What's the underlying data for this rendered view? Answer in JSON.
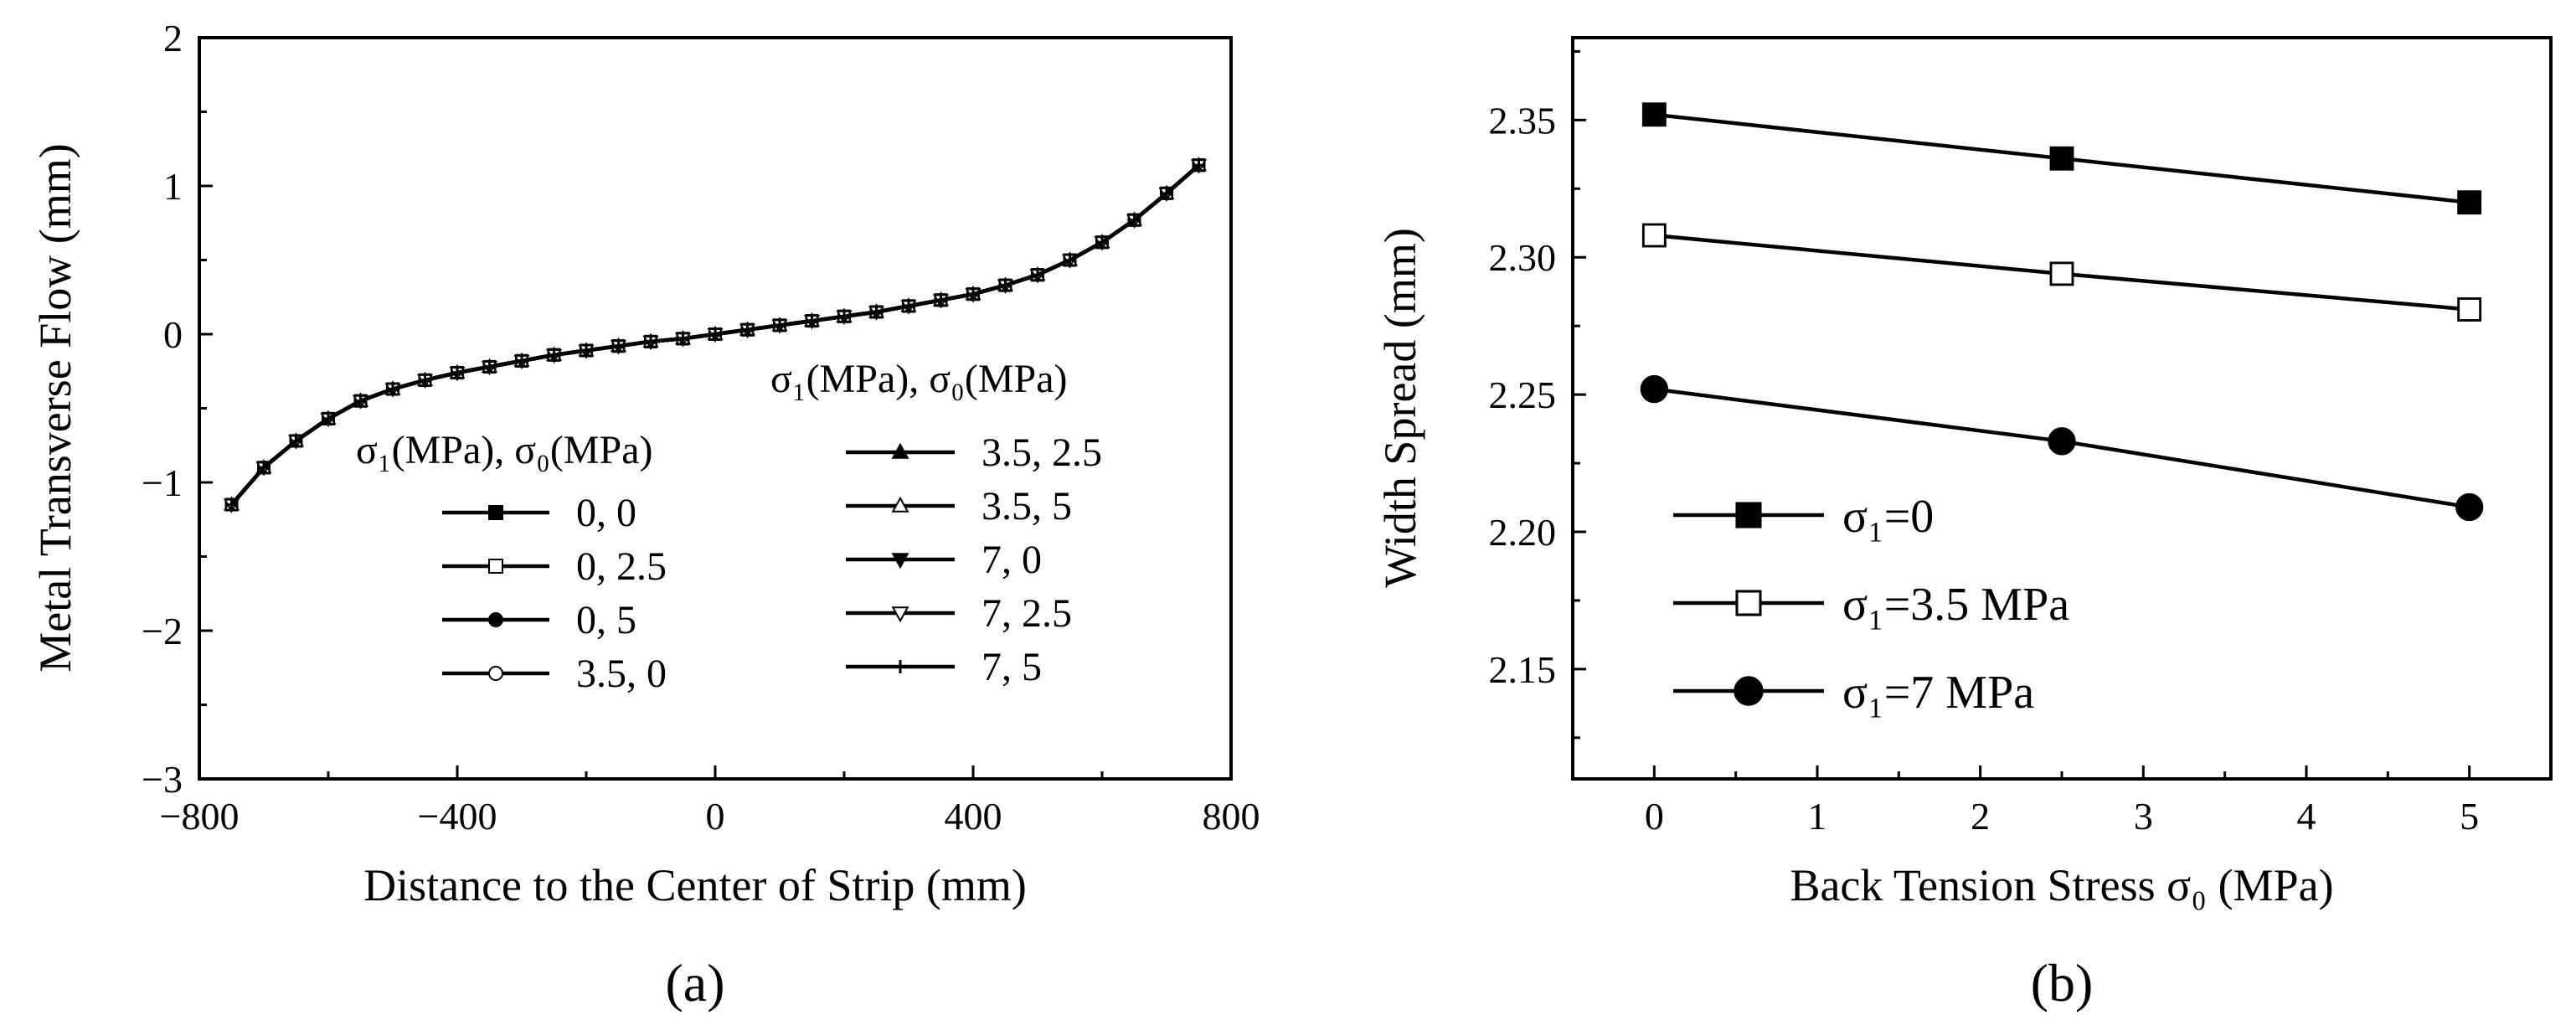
{
  "chart_data": [
    {
      "type": "line",
      "panel_label": "(a)",
      "xlabel": "Distance to the Center of Strip (mm)",
      "ylabel": "Metal Transverse Flow (mm)",
      "xlim": [
        -800,
        800
      ],
      "ylim": [
        -3,
        2
      ],
      "xticks": [
        "−800",
        "−400",
        "0",
        "400",
        "800"
      ],
      "yticks": [
        "−3",
        "−2",
        "−1",
        "0",
        "1",
        "2"
      ],
      "legend_title": "σ₁(MPa), σ₀(MPa)",
      "x": [
        -750,
        -700,
        -650,
        -600,
        -550,
        -500,
        -450,
        -400,
        -350,
        -300,
        -250,
        -200,
        -150,
        -100,
        -50,
        0,
        50,
        100,
        150,
        200,
        250,
        300,
        350,
        400,
        450,
        500,
        550,
        600,
        650,
        700,
        750
      ],
      "series": [
        {
          "name": "0, 0",
          "marker": "square-filled",
          "values": [
            -1.15,
            -0.9,
            -0.72,
            -0.57,
            -0.45,
            -0.37,
            -0.31,
            -0.26,
            -0.22,
            -0.18,
            -0.14,
            -0.11,
            -0.08,
            -0.05,
            -0.03,
            0.0,
            0.03,
            0.06,
            0.09,
            0.12,
            0.15,
            0.19,
            0.23,
            0.27,
            0.33,
            0.4,
            0.5,
            0.62,
            0.77,
            0.95,
            1.14
          ]
        },
        {
          "name": "0, 2.5",
          "marker": "square-open",
          "values": [
            -1.15,
            -0.9,
            -0.72,
            -0.57,
            -0.45,
            -0.37,
            -0.31,
            -0.26,
            -0.22,
            -0.18,
            -0.14,
            -0.11,
            -0.08,
            -0.05,
            -0.03,
            0.0,
            0.03,
            0.06,
            0.09,
            0.12,
            0.15,
            0.19,
            0.23,
            0.27,
            0.33,
            0.4,
            0.5,
            0.62,
            0.77,
            0.95,
            1.14
          ]
        },
        {
          "name": "0, 5",
          "marker": "circle-filled",
          "values": [
            -1.15,
            -0.9,
            -0.72,
            -0.57,
            -0.45,
            -0.37,
            -0.31,
            -0.26,
            -0.22,
            -0.18,
            -0.14,
            -0.11,
            -0.08,
            -0.05,
            -0.03,
            0.0,
            0.03,
            0.06,
            0.09,
            0.12,
            0.15,
            0.19,
            0.23,
            0.27,
            0.33,
            0.4,
            0.5,
            0.62,
            0.77,
            0.95,
            1.14
          ]
        },
        {
          "name": "3.5, 0",
          "marker": "circle-open",
          "values": [
            -1.15,
            -0.9,
            -0.72,
            -0.57,
            -0.45,
            -0.37,
            -0.31,
            -0.26,
            -0.22,
            -0.18,
            -0.14,
            -0.11,
            -0.08,
            -0.05,
            -0.03,
            0.0,
            0.03,
            0.06,
            0.09,
            0.12,
            0.15,
            0.19,
            0.23,
            0.27,
            0.33,
            0.4,
            0.5,
            0.62,
            0.77,
            0.95,
            1.14
          ]
        },
        {
          "name": "3.5, 2.5",
          "marker": "triangle-up-filled",
          "values": [
            -1.15,
            -0.9,
            -0.72,
            -0.57,
            -0.45,
            -0.37,
            -0.31,
            -0.26,
            -0.22,
            -0.18,
            -0.14,
            -0.11,
            -0.08,
            -0.05,
            -0.03,
            0.0,
            0.03,
            0.06,
            0.09,
            0.12,
            0.15,
            0.19,
            0.23,
            0.27,
            0.33,
            0.4,
            0.5,
            0.62,
            0.77,
            0.95,
            1.14
          ]
        },
        {
          "name": "3.5, 5",
          "marker": "triangle-up-open",
          "values": [
            -1.15,
            -0.9,
            -0.72,
            -0.57,
            -0.45,
            -0.37,
            -0.31,
            -0.26,
            -0.22,
            -0.18,
            -0.14,
            -0.11,
            -0.08,
            -0.05,
            -0.03,
            0.0,
            0.03,
            0.06,
            0.09,
            0.12,
            0.15,
            0.19,
            0.23,
            0.27,
            0.33,
            0.4,
            0.5,
            0.62,
            0.77,
            0.95,
            1.14
          ]
        },
        {
          "name": "7, 0",
          "marker": "triangle-down-filled",
          "values": [
            -1.15,
            -0.9,
            -0.72,
            -0.57,
            -0.45,
            -0.37,
            -0.31,
            -0.26,
            -0.22,
            -0.18,
            -0.14,
            -0.11,
            -0.08,
            -0.05,
            -0.03,
            0.0,
            0.03,
            0.06,
            0.09,
            0.12,
            0.15,
            0.19,
            0.23,
            0.27,
            0.33,
            0.4,
            0.5,
            0.62,
            0.77,
            0.95,
            1.14
          ]
        },
        {
          "name": "7, 2.5",
          "marker": "triangle-down-open",
          "values": [
            -1.15,
            -0.9,
            -0.72,
            -0.57,
            -0.45,
            -0.37,
            -0.31,
            -0.26,
            -0.22,
            -0.18,
            -0.14,
            -0.11,
            -0.08,
            -0.05,
            -0.03,
            0.0,
            0.03,
            0.06,
            0.09,
            0.12,
            0.15,
            0.19,
            0.23,
            0.27,
            0.33,
            0.4,
            0.5,
            0.62,
            0.77,
            0.95,
            1.14
          ]
        },
        {
          "name": "7, 5",
          "marker": "plus",
          "values": [
            -1.15,
            -0.9,
            -0.72,
            -0.57,
            -0.45,
            -0.37,
            -0.31,
            -0.26,
            -0.22,
            -0.18,
            -0.14,
            -0.11,
            -0.08,
            -0.05,
            -0.03,
            0.0,
            0.03,
            0.06,
            0.09,
            0.12,
            0.15,
            0.19,
            0.23,
            0.27,
            0.33,
            0.4,
            0.5,
            0.62,
            0.77,
            0.95,
            1.14
          ]
        }
      ]
    },
    {
      "type": "line",
      "panel_label": "(b)",
      "xlabel": "Back Tension Stress σ₀ (MPa)",
      "ylabel": "Width Spread (mm)",
      "xlim": [
        -0.5,
        5.5
      ],
      "ylim": [
        2.11,
        2.38
      ],
      "xticks": [
        "0",
        "1",
        "2",
        "3",
        "4",
        "5"
      ],
      "yticks": [
        "2.15",
        "2.20",
        "2.25",
        "2.30",
        "2.35"
      ],
      "x": [
        0,
        2.5,
        5
      ],
      "series": [
        {
          "name": "σ₁=0",
          "marker": "square-filled",
          "values": [
            2.352,
            2.336,
            2.32
          ]
        },
        {
          "name": "σ₁=3.5 MPa",
          "marker": "square-open",
          "values": [
            2.308,
            2.294,
            2.281
          ]
        },
        {
          "name": "σ₁=7 MPa",
          "marker": "circle-filled",
          "values": [
            2.252,
            2.233,
            2.209
          ]
        }
      ]
    }
  ]
}
